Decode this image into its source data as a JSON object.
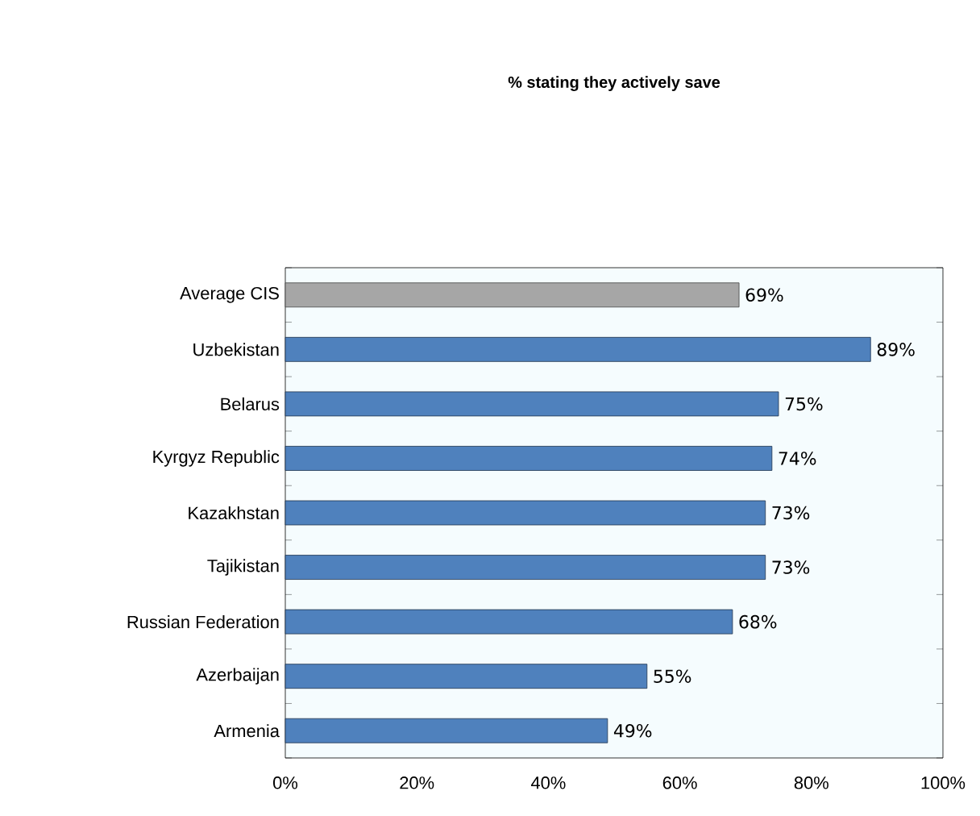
{
  "chart_data": {
    "type": "bar",
    "orientation": "horizontal",
    "title": "% stating they actively save",
    "categories": [
      "Average CIS",
      "Uzbekistan",
      "Belarus",
      "Kyrgyz Republic",
      "Kazakhstan",
      "Tajikistan",
      "Russian Federation",
      "Azerbaijan",
      "Armenia"
    ],
    "values": [
      69,
      89,
      75,
      74,
      73,
      73,
      68,
      55,
      49
    ],
    "value_labels": [
      "69%",
      "89%",
      "75%",
      "74%",
      "73%",
      "73%",
      "68%",
      "55%",
      "49%"
    ],
    "colors": [
      "#a6a6a6",
      "#4f81bd",
      "#4f81bd",
      "#4f81bd",
      "#4f81bd",
      "#4f81bd",
      "#4f81bd",
      "#4f81bd",
      "#4f81bd"
    ],
    "xlim": [
      0,
      100
    ],
    "xticks": [
      {
        "value": 0,
        "label": "0%"
      },
      {
        "value": 20,
        "label": "20%"
      },
      {
        "value": 40,
        "label": "40%"
      },
      {
        "value": 60,
        "label": "60%"
      },
      {
        "value": 80,
        "label": "80%"
      },
      {
        "value": 100,
        "label": "100%"
      }
    ],
    "grid": false
  }
}
